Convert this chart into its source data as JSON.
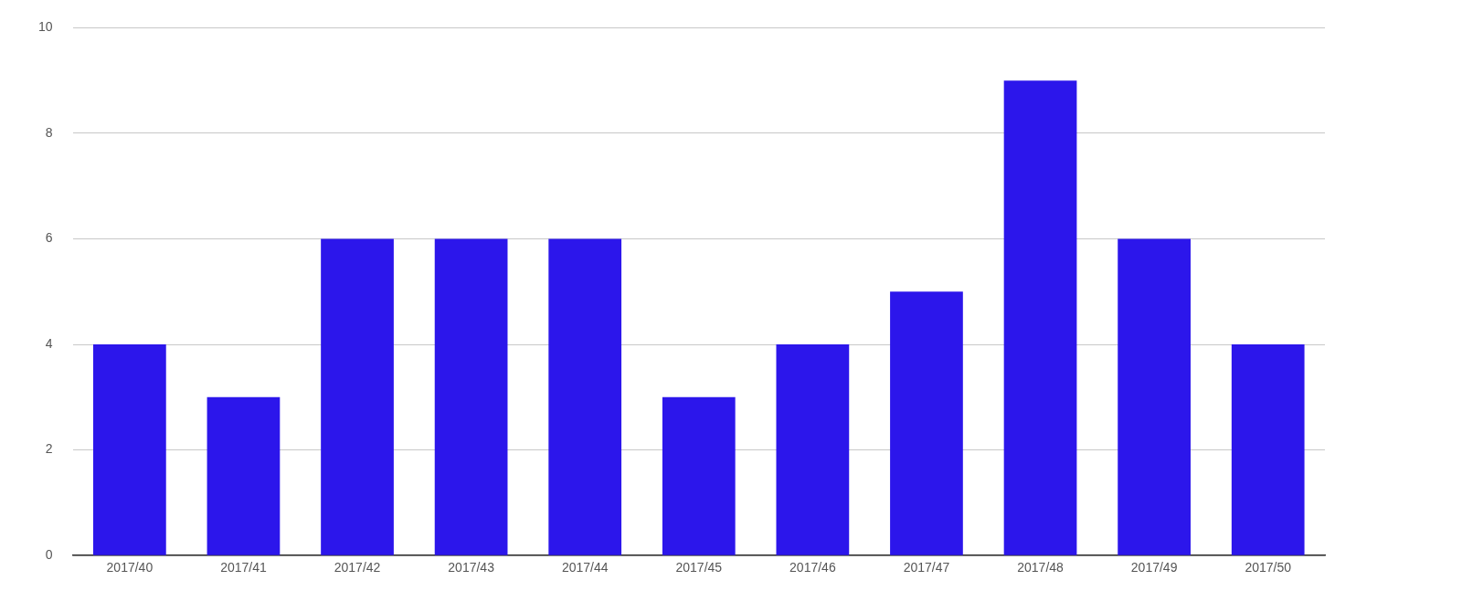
{
  "chart_data": {
    "type": "bar",
    "categories": [
      "2017/40",
      "2017/41",
      "2017/42",
      "2017/43",
      "2017/44",
      "2017/45",
      "2017/46",
      "2017/47",
      "2017/48",
      "2017/49",
      "2017/50"
    ],
    "values": [
      4,
      3,
      6,
      6,
      6,
      3,
      4,
      5,
      9,
      6,
      4
    ],
    "color": "#2c16eb",
    "ylim": [
      0,
      10
    ],
    "yticks": [
      0,
      2,
      4,
      6,
      8,
      10
    ],
    "grid": "y",
    "legend": false
  }
}
